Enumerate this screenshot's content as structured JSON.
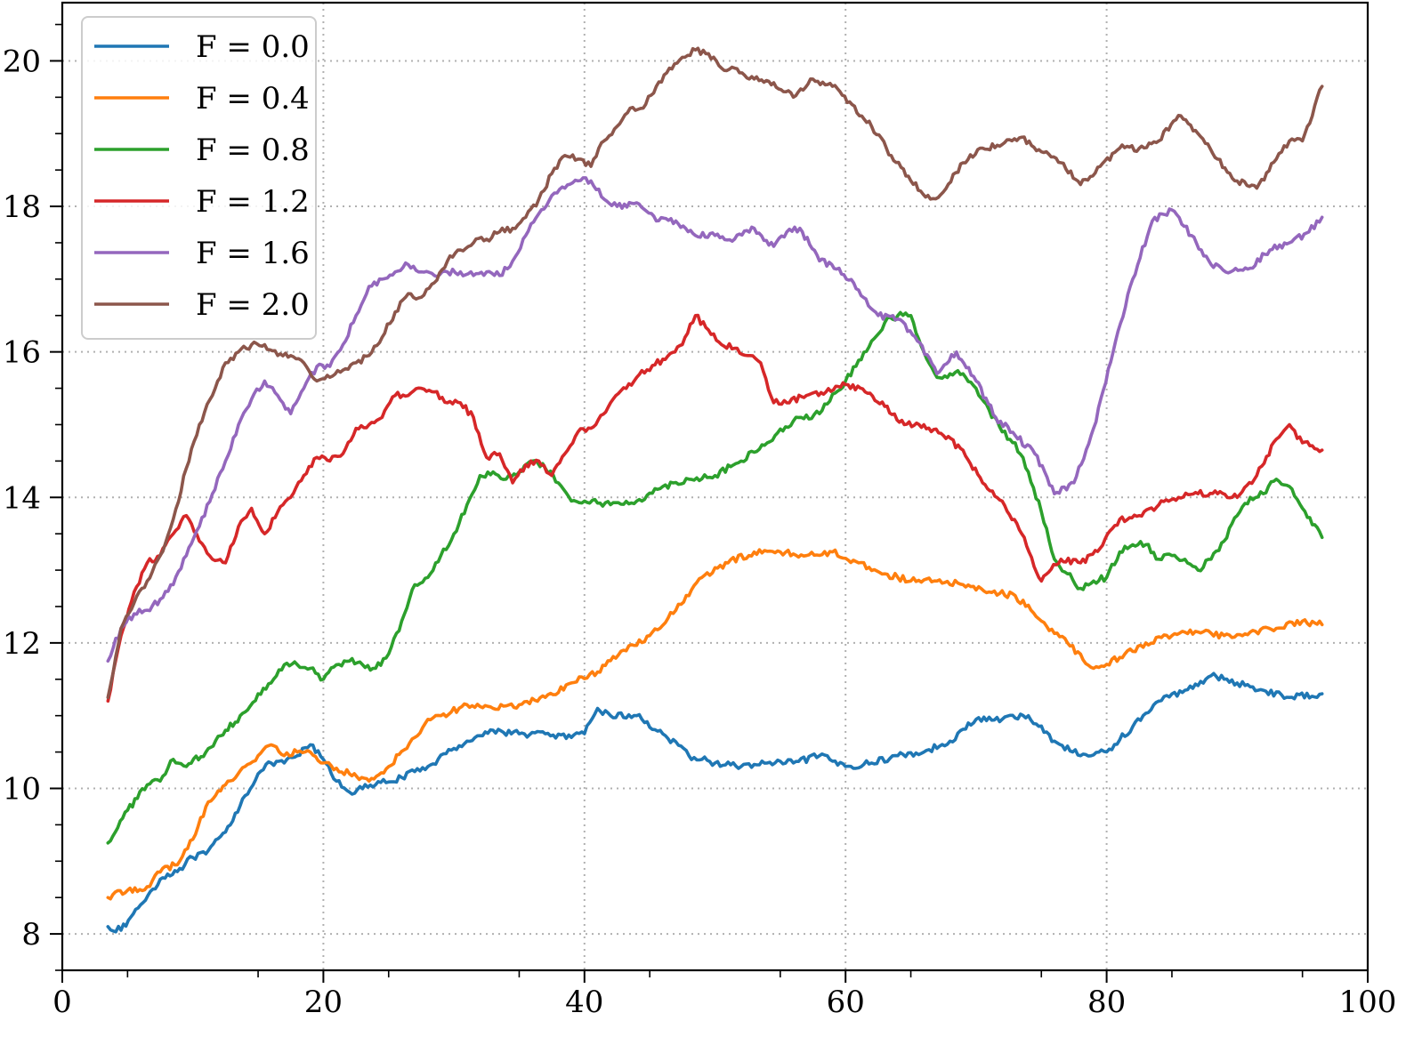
{
  "chart_data": {
    "type": "line",
    "title": "",
    "xlabel": "",
    "ylabel": "",
    "xlim": [
      0,
      100
    ],
    "ylim": [
      7.5,
      20.8
    ],
    "xticks": [
      "0",
      "20",
      "40",
      "60",
      "80",
      "100"
    ],
    "yticks": [
      "8",
      "10",
      "12",
      "14",
      "16",
      "18",
      "20"
    ],
    "grid": true,
    "grid_style": "dotted",
    "legend_position": "top-left",
    "series": [
      {
        "name": "F = 0.0",
        "color": "#1f77b4",
        "x": [
          3.5,
          4.5,
          6,
          7.5,
          9,
          10,
          11,
          12.5,
          14,
          15,
          16,
          17,
          18,
          19,
          20,
          21,
          22,
          24,
          26,
          28,
          30,
          31,
          33,
          35,
          37,
          39,
          40,
          41,
          42,
          44,
          46,
          48,
          50,
          52,
          54,
          56,
          58,
          60,
          62,
          64,
          66,
          68,
          70,
          72,
          74,
          76,
          78,
          80,
          82,
          84,
          86,
          88,
          90,
          92,
          94,
          96.5
        ],
        "values": [
          8.1,
          8.05,
          8.4,
          8.75,
          8.9,
          9.05,
          9.1,
          9.4,
          9.9,
          10.2,
          10.35,
          10.35,
          10.45,
          10.6,
          10.4,
          10.1,
          9.95,
          10.05,
          10.15,
          10.3,
          10.55,
          10.65,
          10.8,
          10.75,
          10.75,
          10.7,
          10.75,
          11.1,
          11.0,
          11.0,
          10.75,
          10.45,
          10.35,
          10.3,
          10.35,
          10.35,
          10.45,
          10.3,
          10.35,
          10.45,
          10.5,
          10.65,
          10.95,
          10.95,
          11.0,
          10.65,
          10.45,
          10.5,
          10.85,
          11.2,
          11.35,
          11.55,
          11.45,
          11.35,
          11.25,
          11.3
        ]
      },
      {
        "name": "F = 0.4",
        "color": "#ff7f0e",
        "x": [
          3.5,
          5,
          6.5,
          7.5,
          9,
          10,
          11,
          12.5,
          14,
          15,
          16,
          17,
          18,
          19,
          20,
          22,
          23.5,
          25,
          27,
          28,
          29,
          31,
          33,
          35,
          37,
          39,
          41,
          43,
          45,
          47,
          49,
          51,
          53,
          55,
          57,
          59,
          61,
          63,
          65,
          67,
          69,
          71,
          73,
          75,
          77,
          79,
          81,
          83,
          85,
          87,
          89,
          91,
          93,
          95,
          96.5
        ],
        "values": [
          8.5,
          8.6,
          8.65,
          8.85,
          9.0,
          9.3,
          9.75,
          10.05,
          10.3,
          10.45,
          10.6,
          10.45,
          10.5,
          10.5,
          10.35,
          10.2,
          10.1,
          10.3,
          10.7,
          10.95,
          11.0,
          11.15,
          11.1,
          11.15,
          11.25,
          11.45,
          11.6,
          11.9,
          12.1,
          12.45,
          12.9,
          13.1,
          13.25,
          13.25,
          13.2,
          13.25,
          13.1,
          12.95,
          12.85,
          12.85,
          12.8,
          12.7,
          12.65,
          12.3,
          12.0,
          11.65,
          11.8,
          12.0,
          12.1,
          12.15,
          12.1,
          12.15,
          12.2,
          12.3,
          12.25
        ]
      },
      {
        "name": "F = 0.8",
        "color": "#2ca02c",
        "x": [
          3.5,
          5,
          6.5,
          7.5,
          8.5,
          9.5,
          11,
          12.5,
          14,
          15,
          16,
          17,
          18,
          19,
          20,
          21,
          22,
          23,
          24,
          25,
          26,
          27,
          28,
          29,
          30,
          31,
          32,
          33,
          34,
          35,
          36,
          37,
          38,
          39,
          40,
          42,
          44,
          46,
          48,
          50,
          52,
          54,
          56,
          58,
          60,
          62,
          63,
          64,
          65,
          66,
          67,
          68,
          69,
          70,
          71,
          72,
          73,
          74,
          75,
          76,
          77,
          78,
          79,
          80,
          81,
          82,
          83,
          84,
          85,
          86,
          87,
          88,
          89,
          90,
          91,
          92,
          93,
          94,
          95,
          96.5
        ],
        "values": [
          9.25,
          9.7,
          10.05,
          10.1,
          10.4,
          10.3,
          10.5,
          10.8,
          11.05,
          11.3,
          11.45,
          11.7,
          11.7,
          11.65,
          11.5,
          11.7,
          11.75,
          11.7,
          11.65,
          11.85,
          12.3,
          12.8,
          12.9,
          13.2,
          13.5,
          13.9,
          14.3,
          14.35,
          14.25,
          14.35,
          14.5,
          14.4,
          14.2,
          13.95,
          13.95,
          13.9,
          13.95,
          14.15,
          14.25,
          14.3,
          14.5,
          14.75,
          15.05,
          15.15,
          15.6,
          16.15,
          16.4,
          16.5,
          16.5,
          16.0,
          15.65,
          15.7,
          15.7,
          15.5,
          15.2,
          14.9,
          14.75,
          14.35,
          13.8,
          13.15,
          12.95,
          12.75,
          12.85,
          12.9,
          13.25,
          13.35,
          13.35,
          13.15,
          13.2,
          13.15,
          13.0,
          13.15,
          13.4,
          13.75,
          14.0,
          14.05,
          14.25,
          14.15,
          13.85,
          13.45
        ]
      },
      {
        "name": "F = 1.2",
        "color": "#d62728",
        "x": [
          3.5,
          4.5,
          5.5,
          6.5,
          7.5,
          8.5,
          9.5,
          10.5,
          11.5,
          12.5,
          13.5,
          14.5,
          15.5,
          16.5,
          17.5,
          18.5,
          19.5,
          20.5,
          21.5,
          22.5,
          23.5,
          24.5,
          25.5,
          26.5,
          27.5,
          28.5,
          29.5,
          30.5,
          31.5,
          32.5,
          33.5,
          34.5,
          35.5,
          36.5,
          37.5,
          38.5,
          39.5,
          40.5,
          42,
          44,
          46,
          47.5,
          48.5,
          49.5,
          50.5,
          51.5,
          52.5,
          53.5,
          54.5,
          55.5,
          57,
          58.5,
          60,
          61.5,
          63,
          64.5,
          66,
          67.5,
          69,
          70.5,
          72,
          73.5,
          75,
          76.5,
          78,
          79.5,
          81,
          82.5,
          84,
          85.5,
          87,
          88.5,
          90,
          91.5,
          93,
          94,
          95,
          96.5
        ],
        "values": [
          11.2,
          12.1,
          12.7,
          13.1,
          13.2,
          13.5,
          13.75,
          13.4,
          13.15,
          13.1,
          13.6,
          13.85,
          13.5,
          13.8,
          14.0,
          14.3,
          14.55,
          14.5,
          14.6,
          14.95,
          15.0,
          15.1,
          15.4,
          15.4,
          15.5,
          15.45,
          15.3,
          15.3,
          15.1,
          14.55,
          14.6,
          14.2,
          14.45,
          14.5,
          14.3,
          14.6,
          14.9,
          14.95,
          15.3,
          15.65,
          15.9,
          16.1,
          16.5,
          16.3,
          16.1,
          16.05,
          15.95,
          15.85,
          15.3,
          15.3,
          15.4,
          15.45,
          15.55,
          15.45,
          15.25,
          15.0,
          15.0,
          14.85,
          14.65,
          14.2,
          13.95,
          13.5,
          12.85,
          13.15,
          13.1,
          13.3,
          13.7,
          13.75,
          13.9,
          14.0,
          14.05,
          14.05,
          14.0,
          14.3,
          14.8,
          15.0,
          14.75,
          14.65
        ]
      },
      {
        "name": "F = 1.6",
        "color": "#9467bd",
        "x": [
          3.5,
          4.5,
          5.5,
          6.5,
          7.5,
          8.5,
          9.5,
          10.5,
          11.5,
          12.5,
          13.5,
          14.5,
          15.5,
          16.5,
          17.5,
          18.5,
          19.5,
          20.5,
          21.5,
          22.5,
          23.5,
          24.5,
          25.5,
          26.5,
          27.5,
          28.5,
          29.5,
          30.5,
          31.5,
          32.5,
          33.5,
          34.5,
          35.5,
          36.5,
          37.5,
          38.5,
          39.5,
          40.5,
          41.5,
          42.5,
          44,
          45.5,
          47,
          48.5,
          50,
          51.5,
          53,
          54.5,
          55.5,
          56.5,
          58,
          59.5,
          61,
          62.5,
          64,
          65.5,
          67,
          68.5,
          70,
          71.5,
          73,
          74.5,
          76,
          77.5,
          79,
          80.5,
          82,
          83.5,
          85,
          86.5,
          88,
          89.5,
          91,
          92.5,
          94,
          95.5,
          96.5
        ],
        "values": [
          11.75,
          12.2,
          12.4,
          12.45,
          12.6,
          12.8,
          13.2,
          13.6,
          14.05,
          14.5,
          15.0,
          15.35,
          15.6,
          15.4,
          15.15,
          15.5,
          15.8,
          15.8,
          16.1,
          16.5,
          16.9,
          17.0,
          17.1,
          17.2,
          17.1,
          17.05,
          17.1,
          17.1,
          17.05,
          17.1,
          17.05,
          17.25,
          17.6,
          17.9,
          18.15,
          18.25,
          18.35,
          18.35,
          18.1,
          18.0,
          18.05,
          17.8,
          17.8,
          17.6,
          17.6,
          17.55,
          17.7,
          17.45,
          17.65,
          17.7,
          17.25,
          17.15,
          16.85,
          16.5,
          16.45,
          16.15,
          15.7,
          16.0,
          15.6,
          15.1,
          14.85,
          14.6,
          14.05,
          14.2,
          14.95,
          16.0,
          17.0,
          17.8,
          17.95,
          17.6,
          17.2,
          17.1,
          17.15,
          17.4,
          17.5,
          17.65,
          17.85
        ]
      },
      {
        "name": "F = 2.0",
        "color": "#8c564b",
        "x": [
          3.5,
          4.5,
          5.5,
          6.5,
          7.5,
          8.5,
          9.5,
          10.5,
          11.5,
          12.5,
          13.5,
          14.5,
          15.5,
          16.5,
          17.5,
          18.5,
          19.5,
          20.5,
          21.5,
          22.5,
          23.5,
          24.5,
          25.5,
          26.5,
          27.5,
          28.5,
          29.5,
          30.5,
          31.5,
          32.5,
          33.5,
          34.5,
          35.5,
          36.5,
          37.5,
          38.5,
          39.5,
          40.5,
          41.5,
          42.5,
          43.5,
          44.5,
          45.5,
          46.5,
          47.5,
          48.5,
          49.5,
          50.5,
          51.5,
          53,
          54.5,
          56,
          57.5,
          59,
          60.5,
          62,
          63.5,
          65,
          66.5,
          67.5,
          69,
          70.5,
          72,
          73.5,
          75,
          76.5,
          78,
          79.5,
          81,
          82.5,
          84,
          85.5,
          87,
          88.5,
          90,
          91.5,
          93,
          94,
          95,
          96.5
        ],
        "values": [
          11.25,
          12.2,
          12.55,
          12.85,
          13.2,
          13.7,
          14.4,
          15.0,
          15.4,
          15.85,
          16.0,
          16.1,
          16.1,
          15.95,
          15.95,
          15.85,
          15.6,
          15.65,
          15.75,
          15.85,
          15.95,
          16.2,
          16.55,
          16.8,
          16.75,
          16.95,
          17.25,
          17.4,
          17.5,
          17.55,
          17.65,
          17.7,
          17.85,
          18.1,
          18.45,
          18.7,
          18.65,
          18.55,
          18.9,
          19.1,
          19.35,
          19.35,
          19.65,
          19.9,
          20.05,
          20.15,
          20.1,
          19.9,
          19.9,
          19.75,
          19.7,
          19.5,
          19.75,
          19.65,
          19.4,
          19.1,
          18.7,
          18.35,
          18.1,
          18.2,
          18.6,
          18.8,
          18.85,
          18.95,
          18.75,
          18.6,
          18.3,
          18.55,
          18.8,
          18.8,
          18.9,
          19.25,
          19.0,
          18.65,
          18.35,
          18.25,
          18.65,
          18.9,
          18.9,
          19.65
        ]
      }
    ]
  }
}
